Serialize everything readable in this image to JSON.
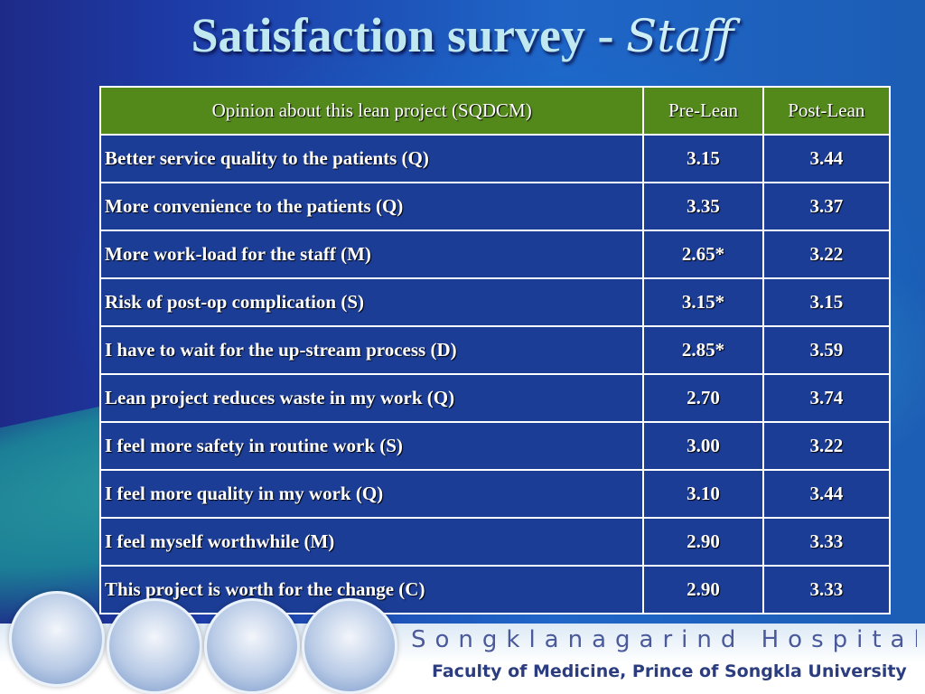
{
  "title": {
    "main": "Satisfaction survey -",
    "accent": "Staff"
  },
  "table": {
    "headers": [
      "Opinion about this lean project (SQDCM)",
      "Pre-Lean",
      "Post-Lean"
    ],
    "rows": [
      {
        "opinion": "Better service quality to the patients (Q)",
        "pre": "3.15",
        "post": "3.44"
      },
      {
        "opinion": "More convenience to the patients (Q)",
        "pre": "3.35",
        "post": "3.37"
      },
      {
        "opinion": "More work-load for the staff  (M)",
        "pre": "2.65*",
        "post": "3.22"
      },
      {
        "opinion": "Risk of  post-op complication (S)",
        "pre": "3.15*",
        "post": "3.15"
      },
      {
        "opinion": "I have to wait for the up-stream process (D)",
        "pre": "2.85*",
        "post": "3.59"
      },
      {
        "opinion": "Lean project reduces waste in my work (Q)",
        "pre": "2.70",
        "post": "3.74"
      },
      {
        "opinion": "I feel more safety in routine work (S)",
        "pre": "3.00",
        "post": "3.22"
      },
      {
        "opinion": "I feel more quality in my work (Q)",
        "pre": "3.10",
        "post": "3.44"
      },
      {
        "opinion": "I feel myself  worthwhile (M)",
        "pre": "2.90",
        "post": "3.33"
      },
      {
        "opinion": "This project is worth for the change (C)",
        "pre": "2.90",
        "post": "3.33"
      }
    ]
  },
  "footer": {
    "hospital": "Songklanagarind  Hospital",
    "faculty": "Faculty of Medicine, Prince of Songkla University"
  },
  "colors": {
    "header_bg": "#53881a",
    "row_bg": "#1c3d96",
    "title": "#bfe8f0"
  }
}
